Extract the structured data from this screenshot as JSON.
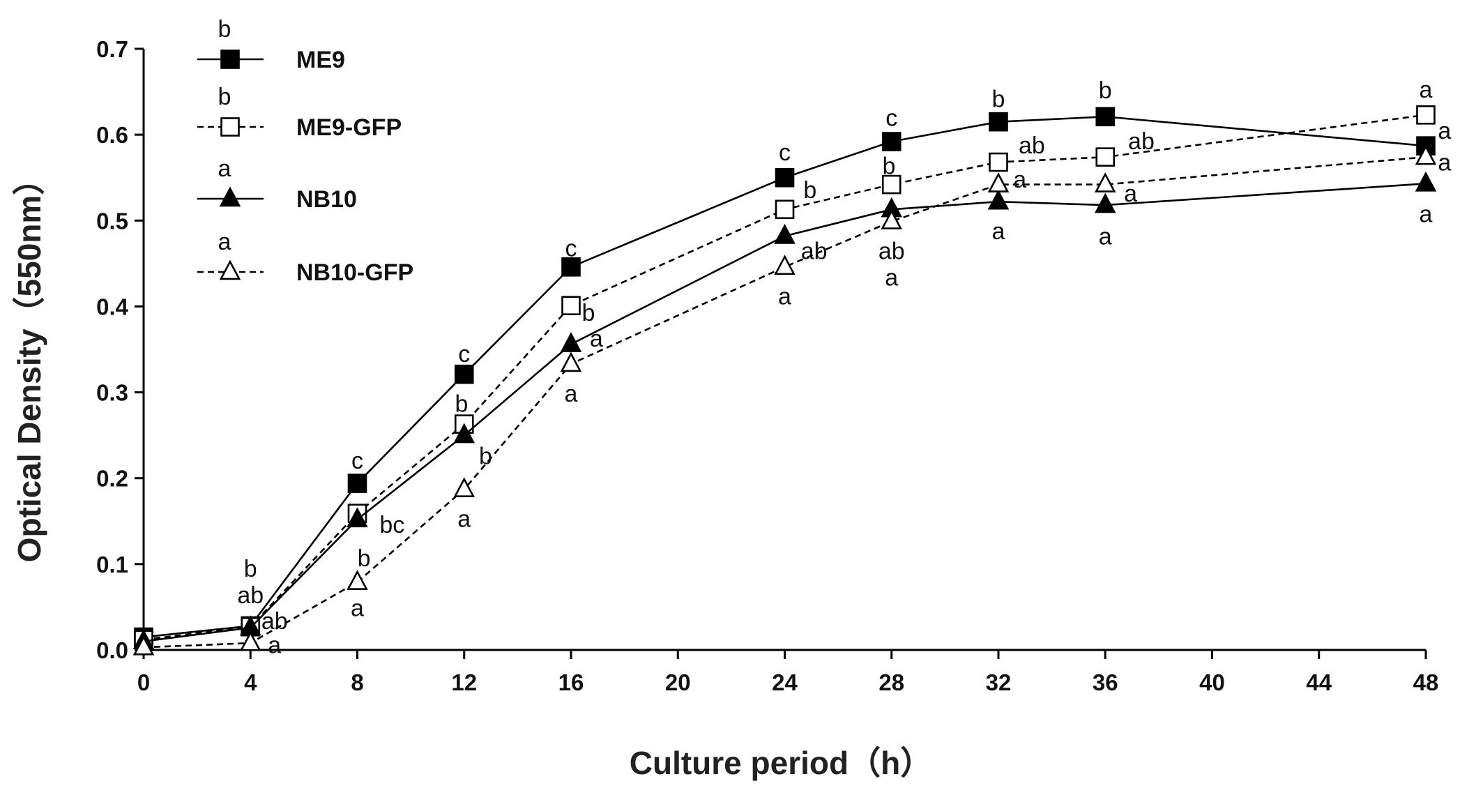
{
  "chart_data": {
    "type": "line",
    "title": "",
    "xlabel": "Culture period（h）",
    "ylabel": "Optical Density（550nm）",
    "xlim": [
      0,
      48
    ],
    "ylim": [
      0,
      0.7
    ],
    "x_ticks": [
      "0",
      "4",
      "8",
      "12",
      "16",
      "20",
      "24",
      "28",
      "32",
      "36",
      "40",
      "44",
      "48"
    ],
    "y_ticks": [
      "0.0",
      "0.1",
      "0.2",
      "0.3",
      "0.4",
      "0.5",
      "0.6",
      "0.7"
    ],
    "x": [
      0,
      4,
      8,
      12,
      16,
      24,
      28,
      32,
      36,
      48
    ],
    "legend_position": "top-left",
    "series": [
      {
        "name": "ME9",
        "line": "solid",
        "marker": "filled-square",
        "legend_letter": "b",
        "values": [
          0.015,
          0.028,
          0.194,
          0.321,
          0.446,
          0.55,
          0.592,
          0.615,
          0.621,
          0.587
        ]
      },
      {
        "name": "ME9-GFP",
        "line": "dashed",
        "marker": "open-square",
        "legend_letter": "b",
        "values": [
          0.012,
          0.027,
          0.159,
          0.263,
          0.401,
          0.513,
          0.542,
          0.568,
          0.574,
          0.623
        ]
      },
      {
        "name": "NB10",
        "line": "solid",
        "marker": "filled-triangle",
        "legend_letter": "a",
        "values": [
          0.01,
          0.026,
          0.152,
          0.25,
          0.356,
          0.482,
          0.513,
          0.522,
          0.518,
          0.543
        ]
      },
      {
        "name": "NB10-GFP",
        "line": "dashed",
        "marker": "open-triangle",
        "legend_letter": "a",
        "values": [
          0.003,
          0.008,
          0.079,
          0.187,
          0.333,
          0.446,
          0.499,
          0.542,
          0.542,
          0.574
        ]
      }
    ],
    "annotations": [
      {
        "x": 4,
        "y": 0.095,
        "text": "b"
      },
      {
        "x": 4,
        "y": 0.064,
        "text": "ab"
      },
      {
        "x": 4.9,
        "y": 0.034,
        "text": "ab"
      },
      {
        "x": 4.9,
        "y": 0.006,
        "text": "a"
      },
      {
        "x": 8,
        "y": 0.221,
        "text": "c"
      },
      {
        "x": 9.3,
        "y": 0.146,
        "text": "bc"
      },
      {
        "x": 8.25,
        "y": 0.107,
        "text": "b"
      },
      {
        "x": 8,
        "y": 0.049,
        "text": "a"
      },
      {
        "x": 12,
        "y": 0.345,
        "text": "c"
      },
      {
        "x": 11.9,
        "y": 0.287,
        "text": "b"
      },
      {
        "x": 12.8,
        "y": 0.226,
        "text": "b"
      },
      {
        "x": 12,
        "y": 0.153,
        "text": "a"
      },
      {
        "x": 16,
        "y": 0.468,
        "text": "c"
      },
      {
        "x": 16.65,
        "y": 0.393,
        "text": "b"
      },
      {
        "x": 16.95,
        "y": 0.363,
        "text": "a"
      },
      {
        "x": 16,
        "y": 0.299,
        "text": "a"
      },
      {
        "x": 24,
        "y": 0.58,
        "text": "c"
      },
      {
        "x": 24.95,
        "y": 0.536,
        "text": "b"
      },
      {
        "x": 25.1,
        "y": 0.465,
        "text": "ab"
      },
      {
        "x": 24,
        "y": 0.412,
        "text": "a"
      },
      {
        "x": 28,
        "y": 0.62,
        "text": "c"
      },
      {
        "x": 27.9,
        "y": 0.564,
        "text": "b"
      },
      {
        "x": 28,
        "y": 0.465,
        "text": "ab"
      },
      {
        "x": 28,
        "y": 0.434,
        "text": "a"
      },
      {
        "x": 32,
        "y": 0.642,
        "text": "b"
      },
      {
        "x": 33.25,
        "y": 0.588,
        "text": "ab"
      },
      {
        "x": 32.8,
        "y": 0.548,
        "text": "a"
      },
      {
        "x": 32,
        "y": 0.488,
        "text": "a"
      },
      {
        "x": 36,
        "y": 0.652,
        "text": "b"
      },
      {
        "x": 37.35,
        "y": 0.593,
        "text": "ab"
      },
      {
        "x": 36.95,
        "y": 0.532,
        "text": "a"
      },
      {
        "x": 36,
        "y": 0.482,
        "text": "a"
      },
      {
        "x": 48,
        "y": 0.653,
        "text": "a"
      },
      {
        "x": 48.7,
        "y": 0.605,
        "text": "a"
      },
      {
        "x": 48.7,
        "y": 0.568,
        "text": "a"
      },
      {
        "x": 48,
        "y": 0.508,
        "text": "a"
      }
    ]
  }
}
